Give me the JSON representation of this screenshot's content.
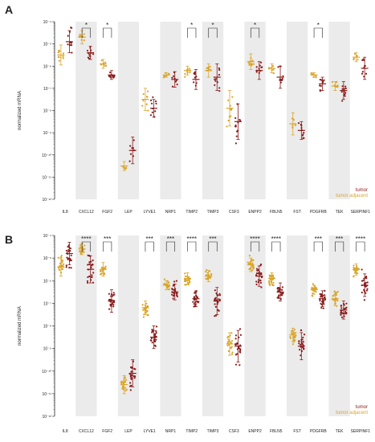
{
  "colors": {
    "tumor": "#8a1a1a",
    "tumor_adjacent": "#d9a52b",
    "band": "#ebebeb",
    "axis": "#222222"
  },
  "chart_data": [
    {
      "panel_label": "A",
      "type": "scatter",
      "ylabel": "normalized mRNA",
      "yscale": "log",
      "ylim_exp": [
        -12,
        -4
      ],
      "yticks": [
        "10⁻⁴",
        "10⁻⁵",
        "10⁻⁶",
        "10⁻⁷",
        "10⁻⁸",
        "10⁻⁹",
        "10⁻¹⁰",
        "10⁻¹¹",
        "10⁻¹²"
      ],
      "categories": [
        "IL8",
        "CXCL12",
        "FGF2",
        "LEP",
        "LYVE1",
        "NRP1",
        "TIMP2",
        "TIMP3",
        "CSF3",
        "ENPP2",
        "FBLN5",
        "FST",
        "PDGFRB",
        "TEK",
        "SERPINF1"
      ],
      "significance": [
        "",
        "*",
        "*",
        "",
        "",
        "",
        "*",
        "*",
        "",
        "*",
        "",
        "",
        "*",
        "",
        ""
      ],
      "legend": [
        "tumor",
        "tumor adjacent"
      ],
      "series": [
        {
          "name": "tumor adjacent",
          "median_exp": [
            -5.5,
            -4.7,
            -5.9,
            -10.5,
            -7.5,
            -6.4,
            -6.2,
            -6.2,
            -7.9,
            -5.8,
            -6.1,
            -8.6,
            -6.4,
            -6.9,
            -5.6
          ],
          "spread": [
            0.45,
            0.3,
            0.2,
            0.2,
            0.5,
            0.1,
            0.2,
            0.3,
            0.8,
            0.35,
            0.2,
            0.5,
            0.1,
            0.2,
            0.2
          ],
          "n": [
            10,
            8,
            8,
            6,
            8,
            8,
            10,
            8,
            10,
            10,
            8,
            6,
            8,
            8,
            6
          ]
        },
        {
          "name": "tumor",
          "median_exp": [
            -4.9,
            -5.4,
            -6.4,
            -9.8,
            -7.9,
            -6.6,
            -6.6,
            -6.5,
            -8.5,
            -6.2,
            -6.5,
            -8.9,
            -6.8,
            -7.1,
            -6.1
          ],
          "spread": [
            0.5,
            0.3,
            0.2,
            0.6,
            0.4,
            0.35,
            0.45,
            0.6,
            0.8,
            0.4,
            0.5,
            0.4,
            0.3,
            0.4,
            0.5
          ],
          "n": [
            10,
            10,
            12,
            8,
            10,
            8,
            10,
            10,
            12,
            10,
            10,
            10,
            10,
            12,
            10
          ]
        }
      ]
    },
    {
      "panel_label": "B",
      "type": "scatter",
      "ylabel": "normalized mRNA",
      "yscale": "log",
      "ylim_exp": [
        -12,
        -4
      ],
      "yticks": [
        "10⁻⁴",
        "10⁻⁵",
        "10⁻⁶",
        "10⁻⁷",
        "10⁻⁸",
        "10⁻⁹",
        "10⁻¹⁰",
        "10⁻¹¹",
        "10⁻¹²"
      ],
      "categories": [
        "IL8",
        "CXCL12",
        "FGF2",
        "LEP",
        "LYVE1",
        "NRP1",
        "TIMP2",
        "TIMP3",
        "CSF3",
        "ENPP2",
        "FBLN5",
        "FST",
        "PDGFRB",
        "TEK",
        "SERPINF1"
      ],
      "significance": [
        "",
        "****",
        "***",
        "",
        "***",
        "***",
        "****",
        "***",
        "",
        "****",
        "****",
        "",
        "***",
        "***",
        "****"
      ],
      "legend": [
        "tumor",
        "tumor adjacent"
      ],
      "series": [
        {
          "name": "tumor adjacent",
          "median_exp": [
            -5.4,
            -4.6,
            -5.5,
            -10.6,
            -7.2,
            -6.2,
            -5.9,
            -5.8,
            -8.8,
            -5.3,
            -5.9,
            -8.4,
            -6.4,
            -6.8,
            -5.5
          ],
          "spread": [
            0.4,
            0.25,
            0.3,
            0.4,
            0.3,
            0.2,
            0.25,
            0.25,
            0.5,
            0.3,
            0.25,
            0.3,
            0.2,
            0.3,
            0.25
          ],
          "n": [
            22,
            22,
            22,
            20,
            22,
            22,
            22,
            22,
            20,
            22,
            22,
            22,
            22,
            22,
            22
          ]
        },
        {
          "name": "tumor",
          "median_exp": [
            -4.8,
            -5.5,
            -6.9,
            -10.1,
            -8.5,
            -6.5,
            -6.8,
            -6.9,
            -8.9,
            -5.8,
            -6.5,
            -8.9,
            -6.8,
            -7.3,
            -6.2
          ],
          "spread": [
            0.5,
            0.6,
            0.5,
            0.6,
            0.5,
            0.35,
            0.35,
            0.6,
            0.7,
            0.45,
            0.4,
            0.6,
            0.35,
            0.4,
            0.5
          ],
          "n": [
            22,
            24,
            24,
            24,
            24,
            24,
            24,
            24,
            24,
            24,
            24,
            24,
            24,
            24,
            24
          ]
        }
      ]
    }
  ]
}
